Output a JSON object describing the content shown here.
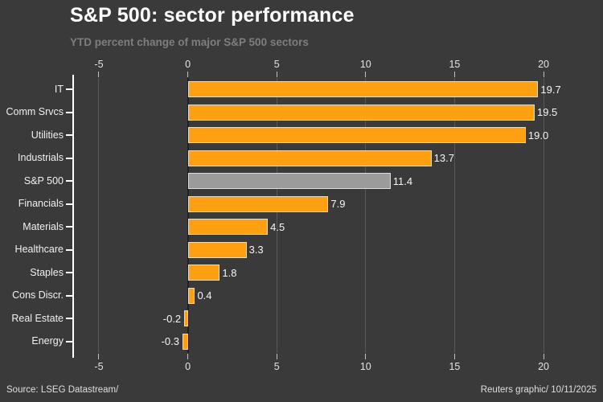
{
  "header": {
    "title": "S&P 500: sector performance",
    "subtitle": "YTD percent change of major S&P 500 sectors"
  },
  "footer": {
    "source": "Source: LSEG Datastream/",
    "credit": "Reuters graphic/ 10/11/2025"
  },
  "chart_data": {
    "type": "bar",
    "orientation": "horizontal",
    "title": "S&P 500: sector performance",
    "subtitle": "YTD percent change of major S&P 500 sectors",
    "categories": [
      "IT",
      "Comm Srvcs",
      "Utilities",
      "Industrials",
      "S&P 500",
      "Financials",
      "Materials",
      "Healthcare",
      "Staples",
      "Cons Discr.",
      "Real Estate",
      "Energy"
    ],
    "values": [
      19.7,
      19.5,
      19.0,
      13.7,
      11.4,
      7.9,
      4.5,
      3.3,
      1.8,
      0.4,
      -0.2,
      -0.3
    ],
    "value_labels": [
      "19.7",
      "19.5",
      "19.0",
      "13.7",
      "11.4",
      "7.9",
      "4.5",
      "3.3",
      "1.8",
      "0.4",
      "-0.2",
      "-0.3"
    ],
    "highlight_category": "S&P 500",
    "x_ticks": [
      -5,
      0,
      5,
      10,
      15,
      20
    ],
    "x_tick_labels": [
      "-5",
      "0",
      "5",
      "10",
      "15",
      "20"
    ],
    "xlim": [
      -6.4,
      22.8
    ],
    "grid": true,
    "legend": "none",
    "colors": {
      "background": "#3A3A3A",
      "bar": "#FFA013",
      "bar_edge": "#EBDCC0",
      "highlight_bar": "#9B9B9B",
      "highlight_edge": "#DCDCDC",
      "axis_spine": "#FFFFFF",
      "grid_line": "#585858",
      "zero_line": "#212121",
      "tick_mark": "#BFBFBF",
      "tick_label": "#E3E3E3",
      "category_label": "#F0F0F0",
      "value_label": "#F5F5F5",
      "title": "#FFFFFF",
      "subtitle": "#7E7E7E",
      "footer_text": "#DFDFDF"
    }
  }
}
